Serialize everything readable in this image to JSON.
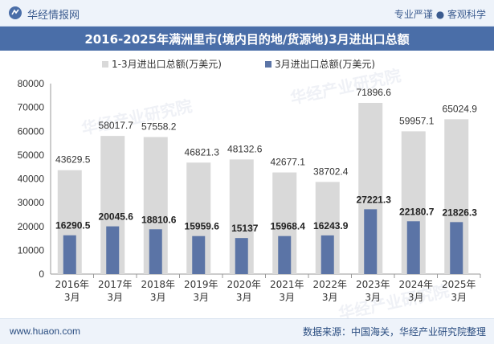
{
  "header": {
    "brand": "华经情报网",
    "tagline": "专业严谨 ● 客观科学"
  },
  "title": "2016-2025年满洲里市(境内目的地/货源地)3月进出口总额",
  "footer": {
    "url": "www.huaon.com",
    "source": "数据来源：中国海关，华经产业研究院整理"
  },
  "watermark": "华经产业研究院",
  "colors": {
    "series1": "#d9d9d9",
    "series2": "#5b74a6",
    "title_bg": "#4a6ea8"
  },
  "chart_data": {
    "type": "bar",
    "categories": [
      "2016年\n3月",
      "2017年\n3月",
      "2018年\n3月",
      "2019年\n3月",
      "2020年\n3月",
      "2021年\n3月",
      "2022年\n3月",
      "2023年\n3月",
      "2024年\n3月",
      "2025年\n3月"
    ],
    "series": [
      {
        "name": "1-3月进出口总额(万美元)",
        "values": [
          43629.5,
          58017.7,
          57558.2,
          46821.3,
          48132.6,
          42677.1,
          38702.4,
          71896.6,
          59957.1,
          65024.9
        ],
        "labels": [
          "43629.5",
          "58017.7",
          "57558.2",
          "46821.3",
          "48132.6",
          "42677.1",
          "38702.4",
          "71896.6",
          "59957.1",
          "65024.9"
        ]
      },
      {
        "name": "3月进出口总额(万美元)",
        "values": [
          16290.5,
          20045.6,
          18810.6,
          15959.6,
          15137,
          15968.4,
          16243.9,
          27221.3,
          22180.7,
          21826.3
        ],
        "labels": [
          "16290.5",
          "20045.6",
          "18810.6",
          "15959.6",
          "15137",
          "15968.4",
          "16243.9",
          "27221.3",
          "22180.7",
          "21826.3"
        ]
      }
    ],
    "ylim": [
      0,
      80000
    ],
    "yticks": [
      "0",
      "10000",
      "20000",
      "30000",
      "40000",
      "50000",
      "60000",
      "70000",
      "80000"
    ],
    "legend_position": "top",
    "grid": false
  }
}
